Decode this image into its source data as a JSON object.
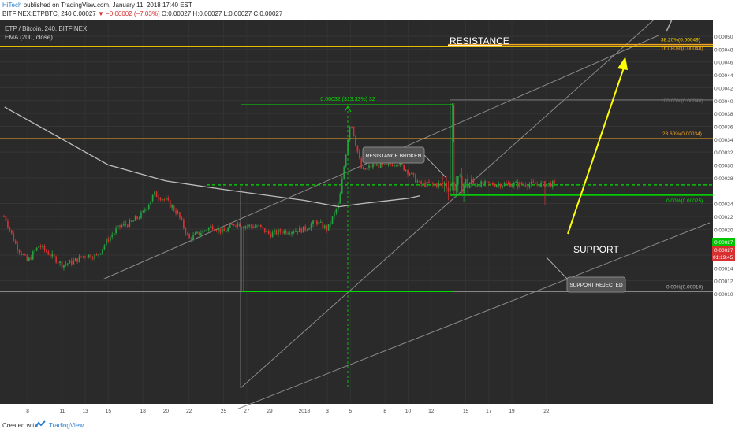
{
  "header": {
    "author": "HiTech",
    "published": "published on TradingView.com, January 11, 2018 17:40 EST",
    "symbol_line": "BITFINEX:ETPBTC, 240",
    "last": "0.00027",
    "change": "▼ −0.00002 (−7.03%)",
    "ohlc": "O:0.00027 H:0.00027 L:0.00027 C:0.00027"
  },
  "legend": {
    "title": "ETP / Bitcoin, 240, BITFINEX",
    "ema": "EMA (200, close)"
  },
  "footer": {
    "created": "Created with",
    "brand": "TradingView"
  },
  "colors": {
    "background": "#2a2a2a",
    "axis_bg": "#ffffff",
    "up": "#26a040",
    "down": "#d83030",
    "resistance": "#ffd400",
    "fib_orange": "#f5a623",
    "support": "#00e000",
    "arrow": "#ffff00",
    "ema": "#bdbdbd",
    "current_price_tag": "#d83030",
    "support_tag": "#00c400"
  },
  "chart_data": {
    "type": "candlestick",
    "ylim": [
      9.5e-05,
      0.000515
    ],
    "y_ticks": [
      "0.00050",
      "0.00048",
      "0.00046",
      "0.00044",
      "0.00042",
      "0.00040",
      "0.00038",
      "0.00036",
      "0.00034",
      "0.00032",
      "0.00030",
      "0.00028",
      "0.00024",
      "0.00022",
      "0.00020",
      "0.00018",
      "0.00016",
      "0.00014",
      "0.00012",
      "0.00010"
    ],
    "x_ticks": [
      "8",
      "11",
      "13",
      "15",
      "18",
      "20",
      "22",
      "25",
      "27",
      "29",
      "2018",
      "3",
      "5",
      "8",
      "10",
      "12",
      "15",
      "17",
      "19",
      "22"
    ],
    "x_tick_dates": [
      "2017-12-08",
      "2017-12-11",
      "2017-12-13",
      "2017-12-15",
      "2017-12-18",
      "2017-12-20",
      "2017-12-22",
      "2017-12-25",
      "2017-12-27",
      "2017-12-29",
      "2018-01-01",
      "2018-01-03",
      "2018-01-05",
      "2018-01-08",
      "2018-01-10",
      "2018-01-12",
      "2018-01-15",
      "2018-01-17",
      "2018-01-19",
      "2018-01-22"
    ],
    "price_path": [
      [
        "2017-12-06",
        0.00022
      ],
      [
        "2017-12-07",
        0.000175
      ],
      [
        "2017-12-08",
        0.00015
      ],
      [
        "2017-12-09",
        0.000175
      ],
      [
        "2017-12-10",
        0.00016
      ],
      [
        "2017-12-11",
        0.000145
      ],
      [
        "2017-12-12",
        0.00015
      ],
      [
        "2017-12-13",
        0.00016
      ],
      [
        "2017-12-14",
        0.000158
      ],
      [
        "2017-12-15",
        0.000185
      ],
      [
        "2017-12-16",
        0.000205
      ],
      [
        "2017-12-17",
        0.00021
      ],
      [
        "2017-12-18",
        0.000225
      ],
      [
        "2017-12-19",
        0.000255
      ],
      [
        "2017-12-20",
        0.000245
      ],
      [
        "2017-12-21",
        0.000225
      ],
      [
        "2017-12-22",
        0.000185
      ],
      [
        "2017-12-23",
        0.000195
      ],
      [
        "2017-12-24",
        0.000205
      ],
      [
        "2017-12-25",
        0.000195
      ],
      [
        "2017-12-26",
        0.00021
      ],
      [
        "2017-12-27",
        0.000205
      ],
      [
        "2017-12-28",
        0.000205
      ],
      [
        "2017-12-29",
        0.000192
      ],
      [
        "2017-12-30",
        0.000197
      ],
      [
        "2017-12-31",
        0.000198
      ],
      [
        "2018-01-01",
        0.0002
      ],
      [
        "2018-01-02",
        0.000212
      ],
      [
        "2018-01-03",
        0.0002
      ],
      [
        "2018-01-04",
        0.00024
      ],
      [
        "2018-01-05",
        0.00037
      ],
      [
        "2018-01-06",
        0.00029
      ],
      [
        "2018-01-07",
        0.0003
      ],
      [
        "2018-01-08",
        0.000297
      ],
      [
        "2018-01-09",
        0.000305
      ],
      [
        "2018-01-10",
        0.00029
      ],
      [
        "2018-01-11",
        0.00027
      ]
    ],
    "ema_200": [
      [
        "2017-12-06",
        0.00039
      ],
      [
        "2017-12-10",
        0.00035
      ],
      [
        "2017-12-15",
        0.0003
      ],
      [
        "2017-12-20",
        0.000275
      ],
      [
        "2017-12-25",
        0.000262
      ],
      [
        "2018-01-01",
        0.000245
      ],
      [
        "2018-01-04",
        0.000235
      ],
      [
        "2018-01-06",
        0.00024
      ],
      [
        "2018-01-08",
        0.000244
      ],
      [
        "2018-01-10",
        0.000248
      ],
      [
        "2018-01-11",
        0.000252
      ]
    ],
    "horizontal_levels": [
      {
        "name": "resistance",
        "price": 0.000484,
        "color": "#ffd400"
      },
      {
        "name": "fib-23.6",
        "price": 0.000341,
        "color": "#f5a623"
      },
      {
        "name": "support-dashed",
        "price": 0.000269,
        "color": "#00e000"
      },
      {
        "name": "fib-0",
        "price": 0.000253,
        "color": "#00e000"
      },
      {
        "name": "fib-0-low",
        "price": 0.000103,
        "color": "#bdbdbd"
      }
    ],
    "fib_labels": {
      "fib_382": "38.20%(0.00049)",
      "fib_1618": "161.80%(0.00048)",
      "fib_100": "100.00%(0.00040)",
      "fib_236": "23.60%(0.00034)",
      "fib_0_upper": "0.00%(0.00025)",
      "fib_0_lower": "0.00%(0.00010)"
    },
    "measure_label": "0.00032 (313.33%) 32",
    "price_tags": {
      "support": "0.00027",
      "current": "0.00027",
      "countdown": "01:19:45"
    },
    "annotations": {
      "resistance": "RESISTANCE",
      "support": "SUPPORT",
      "resistance_broken": "RESISTANCE BROKEN",
      "support_rejected": "SUPPORT REJECTED"
    }
  }
}
